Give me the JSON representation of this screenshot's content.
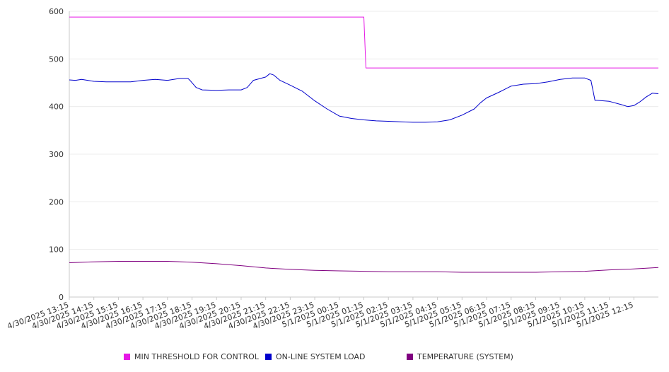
{
  "chart_data": {
    "type": "line",
    "title": "",
    "xlabel": "",
    "ylabel": "",
    "ylim": [
      0,
      600
    ],
    "yticks": [
      0,
      100,
      200,
      300,
      400,
      500,
      600
    ],
    "grid": "horizontal",
    "legend_position": "bottom",
    "x_range": [
      "4/30/2025 13:15",
      "5/1/2025 13:15"
    ],
    "x_tick_labels": [
      "4/30/2025 13:15",
      "4/30/2025 14:15",
      "4/30/2025 15:15",
      "4/30/2025 16:15",
      "4/30/2025 17:15",
      "4/30/2025 18:15",
      "4/30/2025 19:15",
      "4/30/2025 20:15",
      "4/30/2025 21:15",
      "4/30/2025 22:15",
      "4/30/2025 23:15",
      "5/1/2025 00:15",
      "5/1/2025 01:15",
      "5/1/2025 02:15",
      "5/1/2025 03:15",
      "5/1/2025 04:15",
      "5/1/2025 05:15",
      "5/1/2025 06:15",
      "5/1/2025 07:15",
      "5/1/2025 08:15",
      "5/1/2025 09:15",
      "5/1/2025 10:15",
      "5/1/2025 11:15",
      "5/1/2025 12:15"
    ],
    "series": [
      {
        "name": "MIN THRESHOLD FOR CONTROL",
        "color": "#e619e6",
        "x": [
          "4/30/2025 13:15",
          "5/1/2025 01:15",
          "5/1/2025 01:20",
          "5/1/2025 13:15"
        ],
        "values": [
          588,
          588,
          481,
          481
        ]
      },
      {
        "name": "ON-LINE SYSTEM LOAD",
        "color": "#0000cc",
        "x": [
          "4/30/2025 13:15",
          "4/30/2025 13:30",
          "4/30/2025 13:45",
          "4/30/2025 14:15",
          "4/30/2025 14:45",
          "4/30/2025 15:15",
          "4/30/2025 15:45",
          "4/30/2025 16:15",
          "4/30/2025 16:45",
          "4/30/2025 17:15",
          "4/30/2025 17:45",
          "4/30/2025 18:05",
          "4/30/2025 18:10",
          "4/30/2025 18:25",
          "4/30/2025 18:40",
          "4/30/2025 19:15",
          "4/30/2025 19:45",
          "4/30/2025 20:15",
          "4/30/2025 20:30",
          "4/30/2025 20:45",
          "4/30/2025 21:15",
          "4/30/2025 21:25",
          "4/30/2025 21:35",
          "4/30/2025 21:50",
          "4/30/2025 22:15",
          "4/30/2025 22:45",
          "4/30/2025 23:15",
          "4/30/2025 23:45",
          "5/1/2025 00:15",
          "5/1/2025 00:45",
          "5/1/2025 01:15",
          "5/1/2025 01:45",
          "5/1/2025 02:15",
          "5/1/2025 02:45",
          "5/1/2025 03:15",
          "5/1/2025 03:45",
          "5/1/2025 04:15",
          "5/1/2025 04:45",
          "5/1/2025 05:15",
          "5/1/2025 05:45",
          "5/1/2025 06:00",
          "5/1/2025 06:15",
          "5/1/2025 06:45",
          "5/1/2025 07:15",
          "5/1/2025 07:45",
          "5/1/2025 08:15",
          "5/1/2025 08:45",
          "5/1/2025 09:15",
          "5/1/2025 09:45",
          "5/1/2025 10:15",
          "5/1/2025 10:30",
          "5/1/2025 10:40",
          "5/1/2025 10:45",
          "5/1/2025 11:15",
          "5/1/2025 11:45",
          "5/1/2025 12:00",
          "5/1/2025 12:15",
          "5/1/2025 12:30",
          "5/1/2025 12:45",
          "5/1/2025 13:00",
          "5/1/2025 13:15"
        ],
        "values": [
          456,
          455,
          457,
          453,
          452,
          452,
          452,
          455,
          457,
          455,
          459,
          459,
          455,
          440,
          435,
          434,
          435,
          435,
          440,
          455,
          462,
          469,
          466,
          455,
          445,
          432,
          412,
          395,
          380,
          375,
          372,
          370,
          369,
          368,
          367,
          367,
          368,
          372,
          382,
          395,
          408,
          418,
          430,
          443,
          447,
          448,
          452,
          457,
          460,
          460,
          455,
          413,
          413,
          411,
          404,
          400,
          402,
          410,
          420,
          428,
          427
        ]
      },
      {
        "name": "TEMPERATURE (SYSTEM)",
        "color": "#800080",
        "x": [
          "4/30/2025 13:15",
          "4/30/2025 14:15",
          "4/30/2025 15:15",
          "4/30/2025 16:15",
          "4/30/2025 17:15",
          "4/30/2025 18:15",
          "4/30/2025 19:15",
          "4/30/2025 20:15",
          "4/30/2025 21:15",
          "4/30/2025 22:15",
          "4/30/2025 23:15",
          "5/1/2025 00:15",
          "5/1/2025 01:15",
          "5/1/2025 02:15",
          "5/1/2025 03:15",
          "5/1/2025 04:15",
          "5/1/2025 05:15",
          "5/1/2025 06:15",
          "5/1/2025 07:15",
          "5/1/2025 08:15",
          "5/1/2025 09:15",
          "5/1/2025 10:15",
          "5/1/2025 11:15",
          "5/1/2025 12:15",
          "5/1/2025 13:15"
        ],
        "values": [
          72,
          74,
          75,
          75,
          75,
          73,
          70,
          66,
          61,
          58,
          56,
          55,
          54,
          53,
          53,
          53,
          52,
          52,
          52,
          52,
          53,
          54,
          57,
          59,
          62
        ]
      }
    ]
  }
}
